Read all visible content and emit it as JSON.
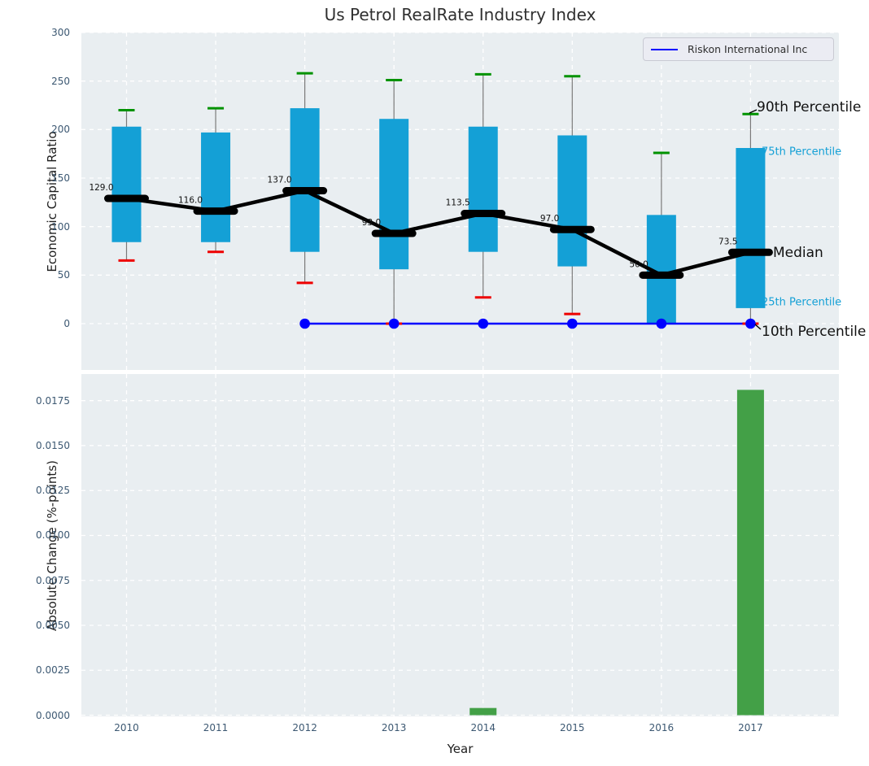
{
  "title": "Us Petrol RealRate Industry Index",
  "legend": {
    "label": "Riskon International Inc",
    "line_color": "#0000ff"
  },
  "colors": {
    "box": "#14a0d6",
    "p90_cap": "#009200",
    "p10_cap": "#ee0000",
    "median": "#000000",
    "company_line": "#0000ff",
    "bar": "#43a047",
    "panel_bg": "#e9eef1",
    "grid": "#ffffff",
    "tick_label": "#3c5872",
    "whisker": "#7a7a7a",
    "annotation_large": "#111111",
    "annotation_small": "#14a0d6"
  },
  "chart_data": [
    {
      "type": "boxplot-percentiles",
      "title": "Us Petrol RealRate Industry Index",
      "ylabel": "Economic Capital Ratio",
      "ylim": [
        -48,
        300
      ],
      "yticks": [
        0,
        50,
        100,
        150,
        200,
        250,
        300
      ],
      "categories": [
        "2010",
        "2011",
        "2012",
        "2013",
        "2014",
        "2015",
        "2016",
        "2017"
      ],
      "series": {
        "p90": [
          220,
          222,
          258,
          251,
          257,
          255,
          176,
          216
        ],
        "p75": [
          203,
          197,
          222,
          211,
          203,
          194,
          112,
          181
        ],
        "median": [
          129,
          116,
          137,
          93,
          113.5,
          97,
          50,
          73.5
        ],
        "p25": [
          84,
          84,
          74,
          56,
          74,
          59,
          0,
          16
        ],
        "p10": [
          65,
          74,
          42,
          0,
          27,
          10,
          0,
          0
        ]
      },
      "p10_cap_visible": [
        true,
        true,
        true,
        true,
        true,
        true,
        false,
        true
      ],
      "median_labels": [
        "129.0",
        "116.0",
        "137.0",
        "93.0",
        "113.5",
        "97.0",
        "50.0",
        "73.5"
      ],
      "company_line": {
        "name": "Riskon International Inc",
        "x": [
          "2012",
          "2013",
          "2014",
          "2015",
          "2016",
          "2017"
        ],
        "y": [
          0,
          0,
          0,
          0,
          0,
          0
        ]
      },
      "annotations": [
        {
          "text": "90th Percentile",
          "size": "large"
        },
        {
          "text": "75th Percentile",
          "size": "small"
        },
        {
          "text": "Median",
          "size": "large"
        },
        {
          "text": "25th Percentile",
          "size": "small"
        },
        {
          "text": "10th Percentile",
          "size": "large"
        }
      ],
      "legend_position": "upper right",
      "grid": true
    },
    {
      "type": "bar",
      "ylabel": "Absolute Change (%-points)",
      "xlabel": "Year",
      "ylim": [
        0,
        0.019
      ],
      "ytick_labels": [
        "0.0000",
        "0.0025",
        "0.0050",
        "0.0075",
        "0.0100",
        "0.0125",
        "0.0150",
        "0.0175"
      ],
      "yticks": [
        0,
        0.0025,
        0.005,
        0.0075,
        0.01,
        0.0125,
        0.015,
        0.0175
      ],
      "categories": [
        "2010",
        "2011",
        "2012",
        "2013",
        "2014",
        "2015",
        "2016",
        "2017"
      ],
      "values": [
        0,
        0,
        0,
        0,
        0.0004,
        0,
        0,
        0.0181
      ],
      "grid": true
    }
  ]
}
